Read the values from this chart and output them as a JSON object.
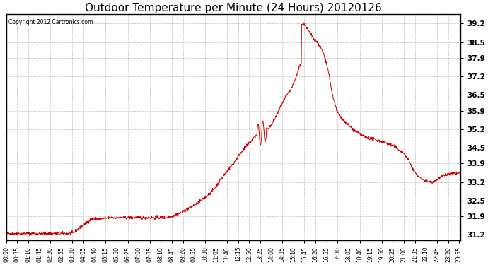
{
  "title": "Outdoor Temperature per Minute (24 Hours) 20120126",
  "copyright_text": "Copyright 2012 Cartronics.com",
  "line_color": "#cc0000",
  "background_color": "#ffffff",
  "plot_background": "#ffffff",
  "grid_color": "#bbbbbb",
  "title_fontsize": 11,
  "yticks": [
    31.2,
    31.9,
    32.5,
    33.2,
    33.9,
    34.5,
    35.2,
    35.9,
    36.5,
    37.2,
    37.9,
    38.5,
    39.2
  ],
  "ylim": [
    31.0,
    39.55
  ],
  "xtick_labels": [
    "00:00",
    "00:35",
    "01:10",
    "01:45",
    "02:20",
    "02:55",
    "03:30",
    "04:05",
    "04:40",
    "05:15",
    "05:50",
    "06:25",
    "07:00",
    "07:35",
    "08:10",
    "08:45",
    "09:20",
    "09:55",
    "10:30",
    "11:05",
    "11:40",
    "12:15",
    "12:50",
    "13:25",
    "14:00",
    "14:35",
    "15:10",
    "15:45",
    "16:20",
    "16:55",
    "17:30",
    "18:05",
    "18:40",
    "19:15",
    "19:50",
    "20:25",
    "21:00",
    "21:35",
    "22:10",
    "22:45",
    "23:20",
    "23:55"
  ]
}
